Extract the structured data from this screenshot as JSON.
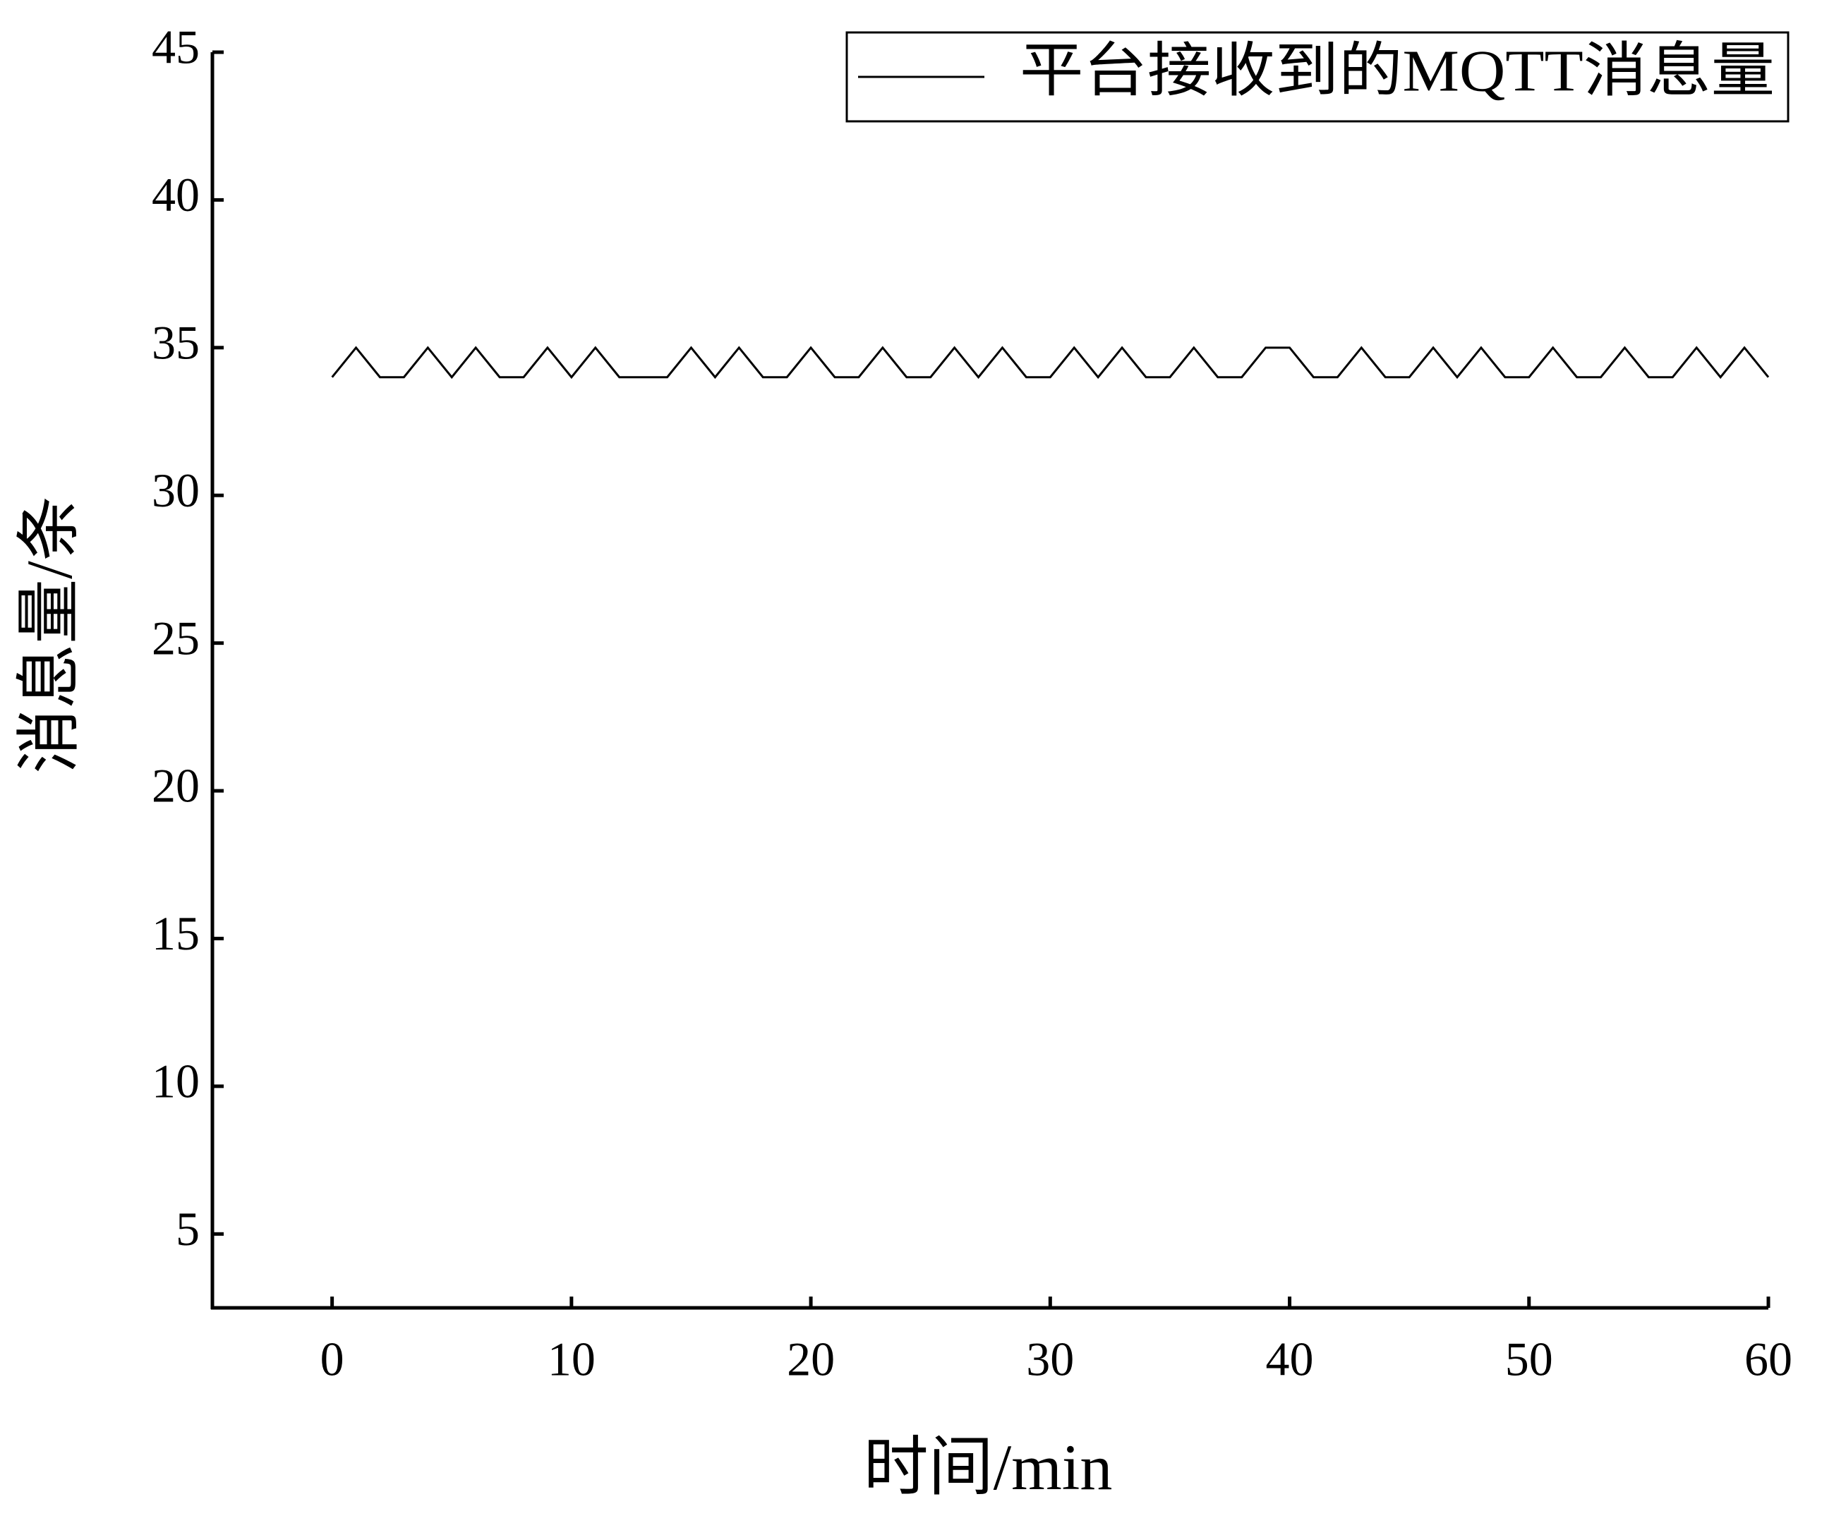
{
  "chart_data": {
    "type": "line",
    "x_label": "时间/min",
    "y_label": "消息量/条",
    "x": [
      0,
      1,
      2,
      3,
      4,
      5,
      6,
      7,
      8,
      9,
      10,
      11,
      12,
      13,
      14,
      15,
      16,
      17,
      18,
      19,
      20,
      21,
      22,
      23,
      24,
      25,
      26,
      27,
      28,
      29,
      30,
      31,
      32,
      33,
      34,
      35,
      36,
      37,
      38,
      39,
      40,
      41,
      42,
      43,
      44,
      45,
      46,
      47,
      48,
      49,
      50,
      51,
      52,
      53,
      54,
      55,
      56,
      57,
      58,
      59,
      60
    ],
    "series": [
      {
        "name": "平台接收到的MQTT消息量",
        "color": "#000000",
        "values": [
          34,
          35,
          34,
          34,
          35,
          34,
          35,
          34,
          34,
          35,
          34,
          35,
          34,
          34,
          34,
          35,
          34,
          35,
          34,
          34,
          35,
          34,
          34,
          35,
          34,
          34,
          35,
          34,
          35,
          34,
          34,
          35,
          34,
          35,
          34,
          34,
          35,
          34,
          34,
          35,
          35,
          34,
          34,
          35,
          34,
          34,
          35,
          34,
          35,
          34,
          34,
          35,
          34,
          34,
          35,
          34,
          34,
          35,
          34,
          35,
          34
        ]
      }
    ],
    "xlim": [
      -5,
      60
    ],
    "xticks": [
      0,
      10,
      20,
      30,
      40,
      50,
      60
    ],
    "ylim": [
      2.5,
      45
    ],
    "yticks": [
      5,
      10,
      15,
      20,
      25,
      30,
      35,
      40,
      45
    ],
    "legend": "top-right"
  }
}
